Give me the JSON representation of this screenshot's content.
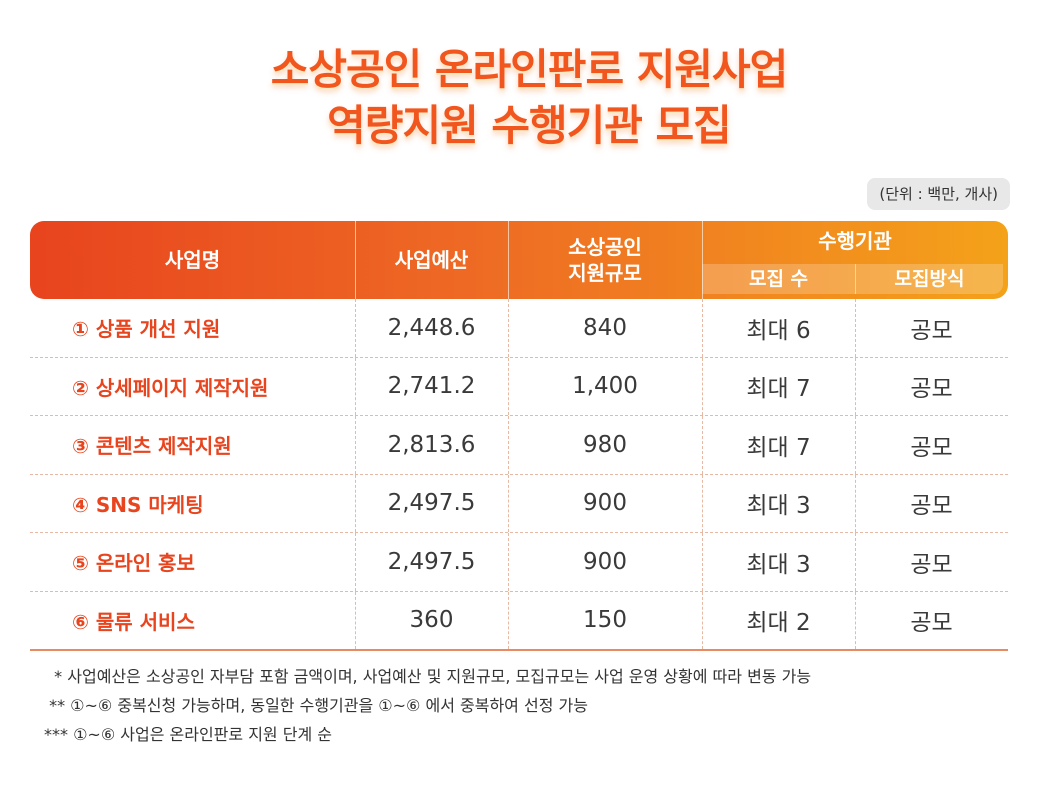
{
  "title": {
    "line1": "소상공인 온라인판로 지원사업",
    "line2": "역량지원 수행기관 모집"
  },
  "unit": "(단위 : 백만, 개사)",
  "header": {
    "name": "사업명",
    "budget": "사업예산",
    "scale": "소상공인\n지원규모",
    "org": "수행기관",
    "count": "모집 수",
    "method": "모집방식"
  },
  "rows": [
    {
      "name": "① 상품 개선 지원",
      "budget": "2,448.6",
      "scale": "840",
      "count": "최대 6",
      "method": "공모"
    },
    {
      "name": "② 상세페이지 제작지원",
      "budget": "2,741.2",
      "scale": "1,400",
      "count": "최대 7",
      "method": "공모"
    },
    {
      "name": "③ 콘텐츠 제작지원",
      "budget": "2,813.6",
      "scale": "980",
      "count": "최대 7",
      "method": "공모"
    },
    {
      "name": "④ SNS 마케팅",
      "budget": "2,497.5",
      "scale": "900",
      "count": "최대 3",
      "method": "공모"
    },
    {
      "name": "⑤ 온라인 홍보",
      "budget": "2,497.5",
      "scale": "900",
      "count": "최대 3",
      "method": "공모"
    },
    {
      "name": "⑥ 물류 서비스",
      "budget": "360",
      "scale": "150",
      "count": "최대 2",
      "method": "공모"
    }
  ],
  "notes": [
    "  * 사업예산은 소상공인 자부담 포함 금액이며, 사업예산 및 지원규모, 모집규모는 사업 운영 상황에 따라 변동 가능",
    " ** ①~⑥ 중복신청 가능하며, 동일한 수행기관을 ①~⑥ 에서 중복하여 선정 가능",
    "*** ①~⑥ 사업은 온라인판로 지원 단계 순"
  ],
  "colors": {
    "accent": "#e8441e",
    "gradient_end": "#f4a21a"
  }
}
